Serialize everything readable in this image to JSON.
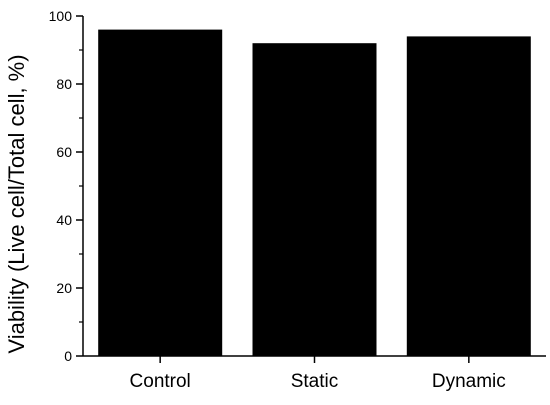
{
  "chart_data": {
    "type": "bar",
    "title": "",
    "xlabel": "",
    "ylabel": "Viability (Live cell/Total cell, %)",
    "categories": [
      "Control",
      "Static",
      "Dynamic"
    ],
    "values": [
      96,
      92,
      94
    ],
    "ylim": [
      0,
      100
    ],
    "yticks": [
      0,
      20,
      40,
      60,
      80,
      100
    ],
    "grid": false,
    "legend": "none",
    "bar_color": "#000000"
  }
}
